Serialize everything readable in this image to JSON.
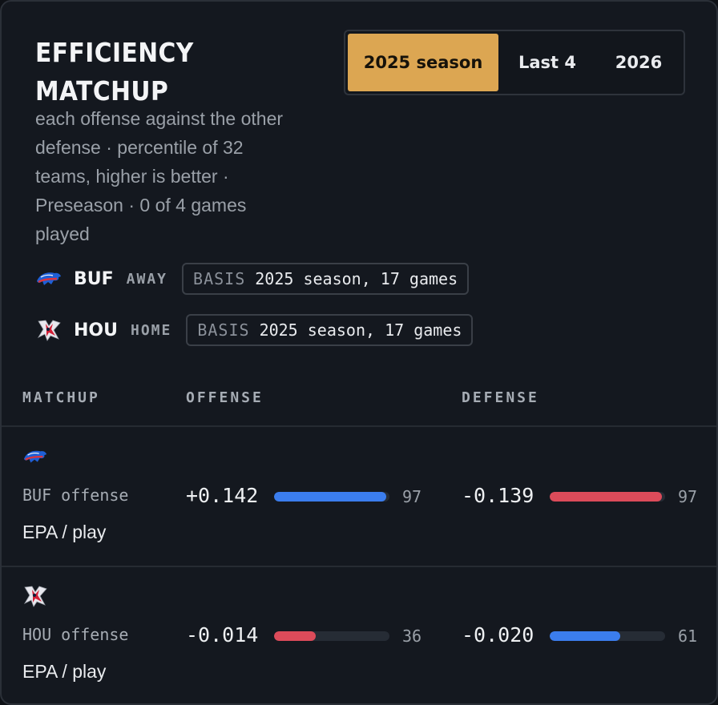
{
  "header": {
    "title_line1": "EFFICIENCY",
    "title_line2": "MATCHUP",
    "subtitle_lines": [
      "each offense against the other",
      "defense · percentile of 32",
      "teams, higher is better ·",
      "Preseason · 0 of 4 games",
      "played"
    ]
  },
  "period_tabs": [
    {
      "label": "2025 season",
      "active": true
    },
    {
      "label": "Last 4",
      "active": false
    },
    {
      "label": "2026",
      "active": false
    }
  ],
  "teams": [
    {
      "abbr": "BUF",
      "side": "AWAY",
      "basis_label": "BASIS",
      "basis_value": "2025 season, 17 games",
      "logo": "buffalo-logo-icon"
    },
    {
      "abbr": "HOU",
      "side": "HOME",
      "basis_label": "BASIS",
      "basis_value": "2025 season, 17 games",
      "logo": "texans-logo-icon"
    }
  ],
  "columns": {
    "matchup": "MATCHUP",
    "offense": "OFFENSE",
    "defense": "DEFENSE"
  },
  "rows": [
    {
      "label": "BUF offense",
      "metric": "EPA / play",
      "logo": "buffalo-logo-icon",
      "offense": {
        "value": "+0.142",
        "percentile": 97
      },
      "defense": {
        "value": "-0.139",
        "percentile": 97
      }
    },
    {
      "label": "HOU offense",
      "metric": "EPA / play",
      "logo": "texans-logo-icon",
      "offense": {
        "value": "-0.014",
        "percentile": 36
      },
      "defense": {
        "value": "-0.020",
        "percentile": 61
      }
    }
  ],
  "colors": {
    "accent": "#dca652",
    "good": "#3b7ded",
    "bad": "#dc4b5a"
  }
}
